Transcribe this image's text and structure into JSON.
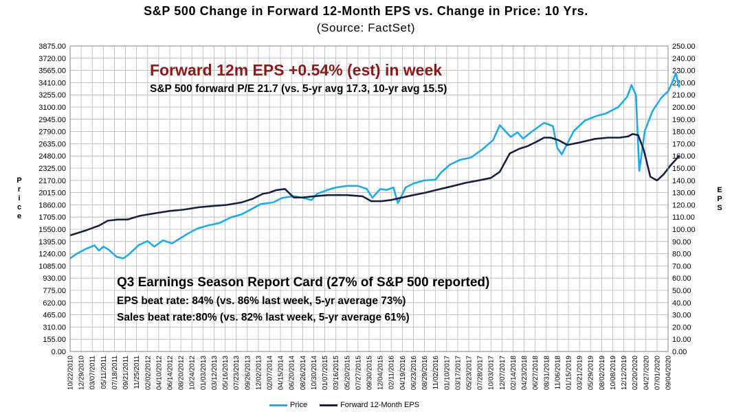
{
  "header": {
    "title": "S&P 500 Change in Forward 12-Month EPS vs. Change in Price: 10 Yrs.",
    "subtitle": "(Source: FactSet)"
  },
  "annotations": {
    "headline": "Forward 12m EPS +0.54% (est) in week",
    "pe_line": "S&P 500 forward P/E 21.7 (vs. 5-yr avg 17.3, 10-yr avg 15.5)",
    "report_card_title": "Q3 Earnings Season Report Card (27% of S&P 500 reported)",
    "eps_beat": "EPS beat rate: 84% (vs. 86% last week, 5-yr average 73%)",
    "sales_beat": "Sales beat rate:80% (vs. 82% last week, 5-yr average 61%)"
  },
  "colors": {
    "price": "#1eaae6",
    "eps": "#16213e",
    "headline": "#8b1a1a",
    "grid": "#b4b4b4"
  },
  "chart_data": {
    "type": "line",
    "left_axis": {
      "label": "Price",
      "range": [
        0,
        3875
      ],
      "ticks": [
        "3875.00",
        "3720.00",
        "3565.00",
        "3410.00",
        "3255.00",
        "3100.00",
        "2945.00",
        "2790.00",
        "2635.00",
        "2480.00",
        "2325.00",
        "2170.00",
        "2015.00",
        "1860.00",
        "1705.00",
        "1550.00",
        "1395.00",
        "1240.00",
        "1085.00",
        "930.00",
        "775.00",
        "620.00",
        "465.00",
        "310.00",
        "155.00",
        "0.00"
      ]
    },
    "right_axis": {
      "label": "EPS",
      "range": [
        0,
        250
      ],
      "ticks": [
        "250.00",
        "240.00",
        "230.00",
        "220.00",
        "210.00",
        "200.00",
        "190.00",
        "180.00",
        "170.00",
        "160.00",
        "150.00",
        "140.00",
        "130.00",
        "120.00",
        "110.00",
        "100.00",
        "90.00",
        "80.00",
        "70.00",
        "60.00",
        "50.00",
        "40.00",
        "30.00",
        "20.00",
        "10.00",
        "0.00"
      ]
    },
    "x_ticks": [
      "10/22/2010",
      "12/29/2010",
      "03/07/2011",
      "05/11/2011",
      "07/18/2011",
      "09/21/2011",
      "11/25/2011",
      "02/02/2012",
      "04/10/2012",
      "06/14/2012",
      "08/20/2012",
      "10/24/2012",
      "01/03/2013",
      "03/12/2013",
      "05/16/2013",
      "07/23/2013",
      "09/26/2013",
      "12/02/2013",
      "02/07/2014",
      "04/15/2014",
      "06/20/2014",
      "08/26/2014",
      "10/30/2014",
      "01/07/2015",
      "03/16/2015",
      "05/20/2015",
      "07/27/2015",
      "09/30/2015",
      "12/04/2015",
      "02/11/2016",
      "04/19/2016",
      "06/23/2016",
      "08/29/2016",
      "11/02/2016",
      "01/10/2017",
      "03/17/2017",
      "05/23/2017",
      "07/28/2017",
      "10/03/2017",
      "12/07/2017",
      "02/14/2018",
      "04/23/2018",
      "06/27/2018",
      "08/31/2018",
      "11/06/2018",
      "01/15/2019",
      "03/21/2019",
      "05/29/2019",
      "08/02/2019",
      "10/08/2019",
      "12/12/2019",
      "02/20/2020",
      "04/27/2020",
      "07/01/2020",
      "09/04/2020"
    ],
    "grid": true,
    "legend_position": "bottom",
    "series": [
      {
        "name": "Price",
        "axis": "left",
        "x": [
          0,
          0.6,
          1.4,
          2.2,
          2.6,
          3.0,
          3.5,
          4.2,
          4.8,
          5.3,
          6.2,
          7.0,
          7.6,
          8.4,
          9.2,
          10.0,
          10.7,
          11.5,
          12.5,
          13.5,
          14.5,
          15.5,
          16.3,
          17.2,
          18.3,
          19.2,
          20.2,
          21.0,
          21.8,
          22.3,
          22.9,
          23.5,
          24.0,
          25.0,
          26.0,
          26.8,
          27.3,
          28.0,
          28.6,
          29.2,
          29.6,
          30.3,
          31.0,
          32.0,
          33.0,
          33.5,
          34.3,
          35.2,
          36.2,
          37.2,
          38.2,
          38.8,
          39.8,
          40.4,
          40.9,
          41.8,
          42.8,
          43.6,
          44.0,
          44.4,
          45.5,
          46.5,
          47.6,
          48.4,
          49.5,
          50.3,
          50.7,
          51.1,
          51.4,
          51.9,
          52.6,
          53.4,
          54.0,
          54.4,
          54.7,
          55.0
        ],
        "values": [
          1180,
          1240,
          1300,
          1345,
          1280,
          1330,
          1290,
          1200,
          1180,
          1230,
          1350,
          1400,
          1330,
          1410,
          1370,
          1440,
          1500,
          1560,
          1600,
          1630,
          1700,
          1740,
          1800,
          1870,
          1890,
          1950,
          1970,
          1950,
          1920,
          2000,
          2030,
          2060,
          2080,
          2100,
          2100,
          2060,
          1950,
          2060,
          2050,
          2080,
          1880,
          2080,
          2130,
          2170,
          2180,
          2270,
          2370,
          2430,
          2460,
          2560,
          2680,
          2870,
          2720,
          2780,
          2700,
          2800,
          2900,
          2860,
          2580,
          2500,
          2800,
          2930,
          2990,
          3020,
          3100,
          3230,
          3380,
          3250,
          2290,
          2800,
          3050,
          3220,
          3300,
          3420,
          3530,
          3350
        ]
      },
      {
        "name": "Forward 12-Month EPS",
        "axis": "right",
        "x": [
          0,
          1.4,
          2.6,
          3.4,
          4.3,
          5.2,
          6.3,
          7.6,
          9.0,
          10.2,
          11.6,
          12.8,
          14.2,
          15.5,
          16.5,
          17.4,
          18.0,
          18.6,
          19.4,
          20.2,
          21.0,
          22.0,
          23.3,
          25.0,
          26.4,
          27.2,
          28.1,
          29.0,
          30.0,
          31.0,
          32.1,
          33.0,
          34.4,
          35.7,
          36.9,
          38.0,
          38.8,
          39.7,
          40.6,
          41.3,
          42.2,
          42.8,
          43.4,
          44.1,
          44.9,
          46.0,
          47.4,
          48.6,
          49.6,
          50.4,
          50.8,
          51.3,
          51.8,
          52.4,
          53.0,
          53.6,
          54.2,
          55.0
        ],
        "values": [
          95,
          99,
          103,
          107,
          108,
          108,
          111,
          113,
          115,
          116,
          118,
          119,
          120,
          122,
          125,
          129,
          130,
          132,
          133,
          126,
          126,
          127,
          128,
          128,
          127,
          123,
          123,
          124,
          126,
          128,
          130,
          132,
          135,
          138,
          140,
          142,
          147,
          162,
          166,
          168,
          172,
          175,
          175,
          173,
          169,
          171,
          174,
          175,
          175,
          176,
          178,
          177,
          165,
          143,
          140,
          145,
          152,
          160
        ]
      }
    ]
  }
}
